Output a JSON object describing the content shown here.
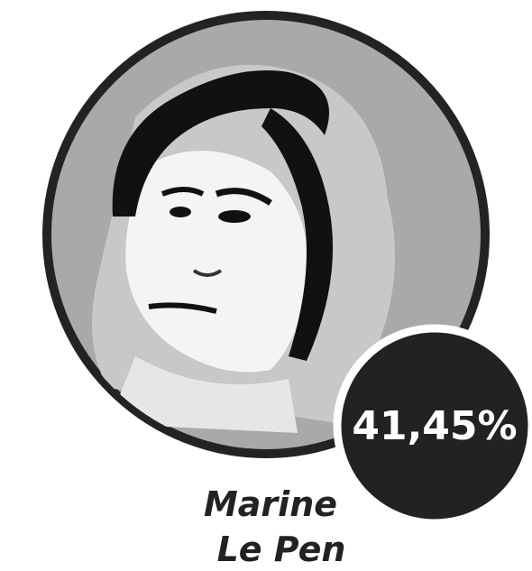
{
  "candidate": {
    "name_lines": [
      "Marine",
      "Le Pen"
    ],
    "result": "41,45%"
  }
}
